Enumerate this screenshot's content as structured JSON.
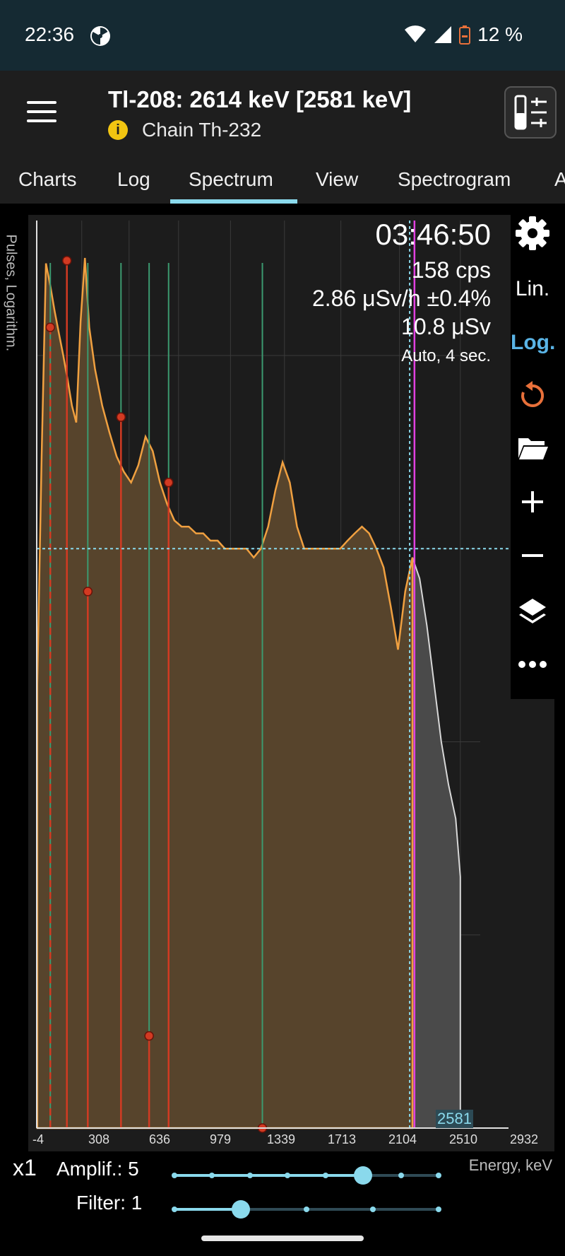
{
  "status_bar": {
    "time": "22:36",
    "battery": "12 %",
    "icons": [
      "radiation-icon",
      "wifi-icon",
      "signal-icon",
      "battery-icon"
    ]
  },
  "app_bar": {
    "title": "Tl-208: 2614 keV [2581 keV]",
    "subtitle": "Chain Th-232",
    "icons": [
      "menu-icon",
      "info-icon",
      "sliders-tool-icon"
    ]
  },
  "tabs": [
    "Charts",
    "Log",
    "Spectrum",
    "View",
    "Spectrogram",
    "A"
  ],
  "active_tab": "Spectrum",
  "readout": {
    "elapsed": "03:46:50",
    "count_rate": "158 cps",
    "dose_rate": "2.86 μSv/h ±0.4%",
    "dose": "10.8 μSv",
    "mode": "Auto, 4 sec."
  },
  "side_panel": {
    "lin_label": "Lin.",
    "log_label": "Log.",
    "active_scale": "Log.",
    "icons": [
      "gear-icon",
      "refresh-icon",
      "folder-icon",
      "plus-icon",
      "minus-icon",
      "layers-icon",
      "more-icon"
    ]
  },
  "chart_data": {
    "type": "area",
    "ylabel": "Pulses, Logarithm.",
    "xlabel": "Energy, keV",
    "x_ticks": [
      "-4",
      "308",
      "636",
      "979",
      "1339",
      "1713",
      "2104",
      "2510",
      "2932"
    ],
    "xlim": [
      -4,
      3070
    ],
    "y_scale": "log",
    "grid": true,
    "marker_label": "2581",
    "spectrum": {
      "x": [
        0,
        30,
        60,
        90,
        120,
        150,
        180,
        210,
        240,
        270,
        300,
        330,
        360,
        400,
        450,
        500,
        550,
        600,
        650,
        700,
        750,
        800,
        850,
        900,
        950,
        1000,
        1050,
        1100,
        1150,
        1200,
        1250,
        1300,
        1350,
        1400,
        1450,
        1500,
        1550,
        1600,
        1650,
        1700,
        1750,
        1800,
        1850,
        1900,
        1950,
        2000,
        2050,
        2100,
        2150,
        2200,
        2250,
        2300,
        2350,
        2400,
        2450,
        2500,
        2550,
        2600,
        2650,
        2700,
        2750,
        2800,
        2850,
        2900,
        2932
      ],
      "y": [
        0.02,
        0.3,
        3.0,
        2.3,
        1.7,
        1.3,
        1.0,
        0.75,
        0.55,
        0.45,
        1.5,
        3.2,
        1.4,
        0.85,
        0.55,
        0.4,
        0.3,
        0.25,
        0.22,
        0.27,
        0.38,
        0.32,
        0.22,
        0.17,
        0.14,
        0.13,
        0.13,
        0.12,
        0.12,
        0.11,
        0.11,
        0.1,
        0.1,
        0.1,
        0.1,
        0.09,
        0.1,
        0.13,
        0.2,
        0.28,
        0.22,
        0.13,
        0.1,
        0.1,
        0.1,
        0.1,
        0.1,
        0.1,
        0.11,
        0.12,
        0.13,
        0.12,
        0.1,
        0.08,
        0.05,
        0.03,
        0.06,
        0.09,
        0.07,
        0.04,
        0.02,
        0.01,
        0.006,
        0.004,
        0.002
      ]
    },
    "red_markers": [
      {
        "x": 205,
        "y": 3.1
      },
      {
        "x": 580,
        "y": 0.48
      },
      {
        "x": 910,
        "y": 0.22
      },
      {
        "x": 1560,
        "y": 0.0001
      },
      {
        "x": 775,
        "y": 0.0003
      }
    ],
    "gauge_points": [
      {
        "x": 90,
        "y": 1.4
      },
      {
        "x": 350,
        "y": 0.06
      }
    ],
    "green_lines": [
      90,
      350,
      580,
      775,
      910,
      1560
    ],
    "red_lines": [
      205,
      350,
      580,
      775,
      910,
      1560
    ],
    "red_dashed": [
      90
    ],
    "cursor_x": 2581,
    "magenta_x": 2614,
    "horizontal_cursor_y": 0.1
  },
  "controls": {
    "multiplier": "x1",
    "amplif_label": "Amplif.: 5",
    "amplif_value": 5,
    "amplif_max": 7,
    "filter_label": "Filter: 1",
    "filter_value": 1,
    "filter_max": 4
  }
}
